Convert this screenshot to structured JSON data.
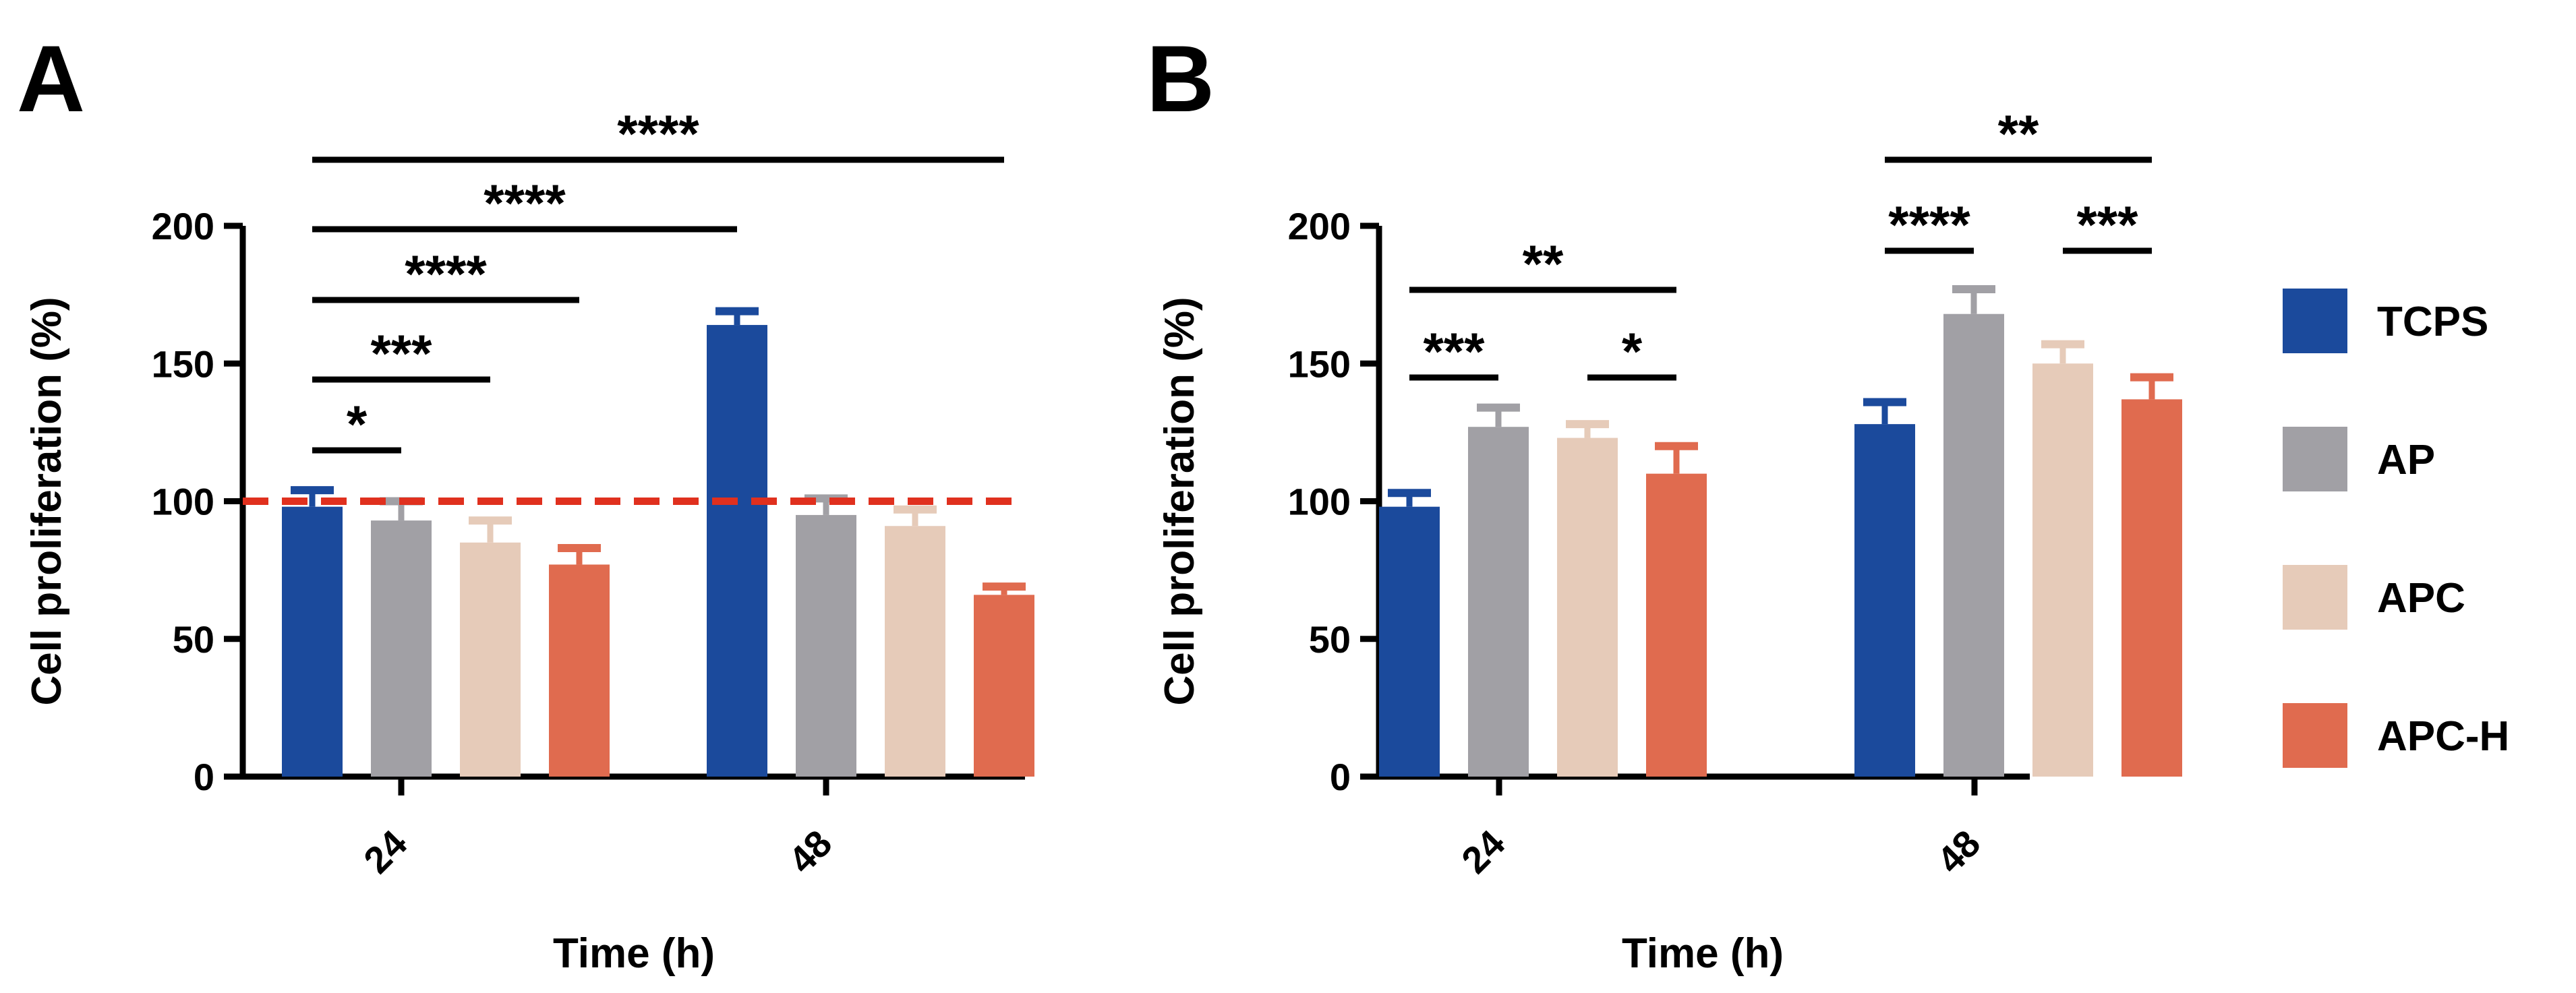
{
  "colors": {
    "TCPS": "#1b4a9c",
    "AP": "#a1a0a5",
    "APC": "#e6cbb9",
    "APC-H": "#e06b4f",
    "reference": "#e0301e"
  },
  "legend": [
    "TCPS",
    "AP",
    "APC",
    "APC-H"
  ],
  "chart_data": [
    {
      "panel": "A",
      "type": "bar",
      "categories": [
        "24",
        "48"
      ],
      "xlabel": "Time (h)",
      "ylabel": "Cell proliferation (%)",
      "ylim": [
        0,
        200
      ],
      "yticks": [
        "0",
        "50",
        "100",
        "150",
        "200"
      ],
      "series": [
        {
          "name": "TCPS",
          "values": [
            98,
            164
          ],
          "errors": [
            6,
            5
          ]
        },
        {
          "name": "AP",
          "values": [
            93,
            95
          ],
          "errors": [
            7,
            6
          ]
        },
        {
          "name": "APC",
          "values": [
            85,
            91
          ],
          "errors": [
            8,
            6
          ]
        },
        {
          "name": "APC-H",
          "values": [
            77,
            66
          ],
          "errors": [
            6,
            3
          ]
        }
      ],
      "reference_line": 100,
      "significance": [
        {
          "from": [
            0,
            0
          ],
          "to": [
            0,
            1
          ],
          "label": "*"
        },
        {
          "from": [
            0,
            0
          ],
          "to": [
            0,
            2
          ],
          "label": "***"
        },
        {
          "from": [
            0,
            0
          ],
          "to": [
            0,
            3
          ],
          "label": "****"
        },
        {
          "from": [
            0,
            0
          ],
          "to": [
            1,
            0
          ],
          "label": "****"
        },
        {
          "from": [
            0,
            0
          ],
          "to": [
            1,
            3
          ],
          "label": "****"
        }
      ]
    },
    {
      "panel": "B",
      "type": "bar",
      "categories": [
        "24",
        "48"
      ],
      "xlabel": "Time (h)",
      "ylabel": "Cell proliferation (%)",
      "ylim": [
        0,
        200
      ],
      "yticks": [
        "0",
        "50",
        "100",
        "150",
        "200"
      ],
      "series": [
        {
          "name": "TCPS",
          "values": [
            98,
            128
          ],
          "errors": [
            5,
            8
          ]
        },
        {
          "name": "AP",
          "values": [
            127,
            168
          ],
          "errors": [
            7,
            9
          ]
        },
        {
          "name": "APC",
          "values": [
            123,
            150
          ],
          "errors": [
            5,
            7
          ]
        },
        {
          "name": "APC-H",
          "values": [
            110,
            137
          ],
          "errors": [
            10,
            8
          ]
        }
      ],
      "significance": [
        {
          "from": [
            0,
            0
          ],
          "to": [
            0,
            1
          ],
          "label": "***"
        },
        {
          "from": [
            0,
            2
          ],
          "to": [
            0,
            3
          ],
          "label": "*"
        },
        {
          "from": [
            0,
            0
          ],
          "to": [
            0,
            3
          ],
          "label": "**"
        },
        {
          "from": [
            1,
            0
          ],
          "to": [
            1,
            1
          ],
          "label": "****"
        },
        {
          "from": [
            1,
            2
          ],
          "to": [
            1,
            3
          ],
          "label": "***"
        },
        {
          "from": [
            1,
            0
          ],
          "to": [
            1,
            3
          ],
          "label": "**"
        }
      ]
    }
  ]
}
